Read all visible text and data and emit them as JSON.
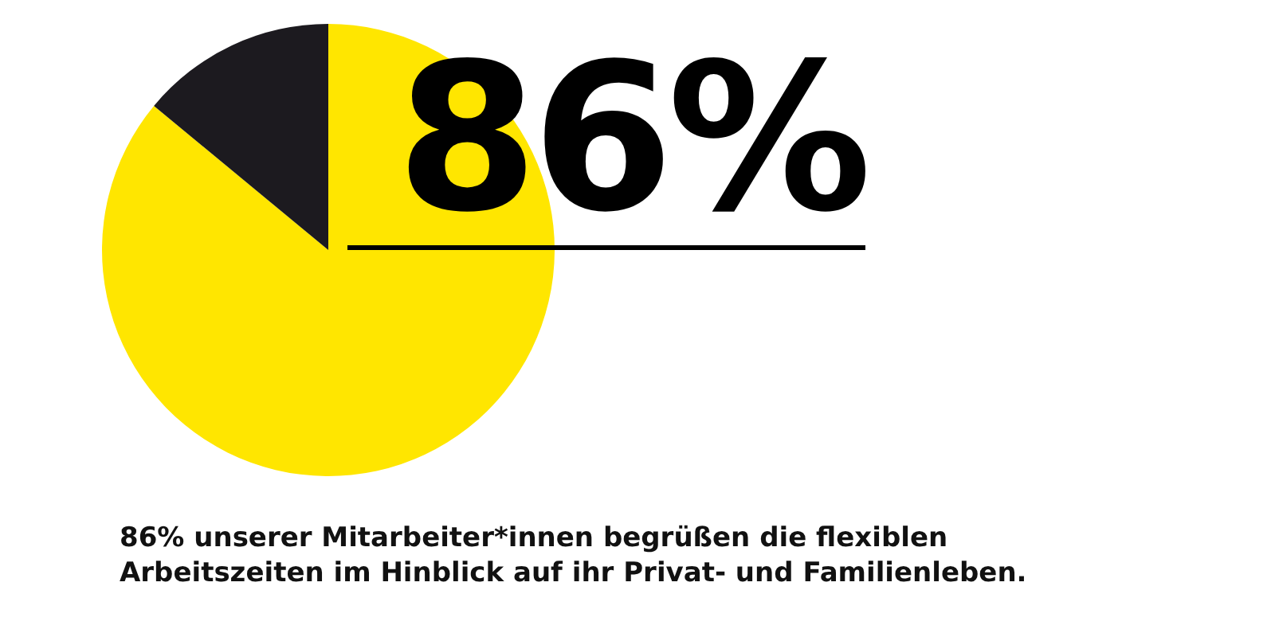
{
  "chart_data": {
    "type": "pie",
    "categories": [
      null,
      null
    ],
    "values": [
      86,
      14
    ],
    "colors": [
      "#ffe600",
      "#1c1a1f"
    ],
    "annotations": [
      "86%",
      "86% unserer Mitarbeiter*innen begrüßen die flexiblen Arbeitszeiten im Hinblick auf ihr Privat- und Familienleben."
    ]
  }
}
